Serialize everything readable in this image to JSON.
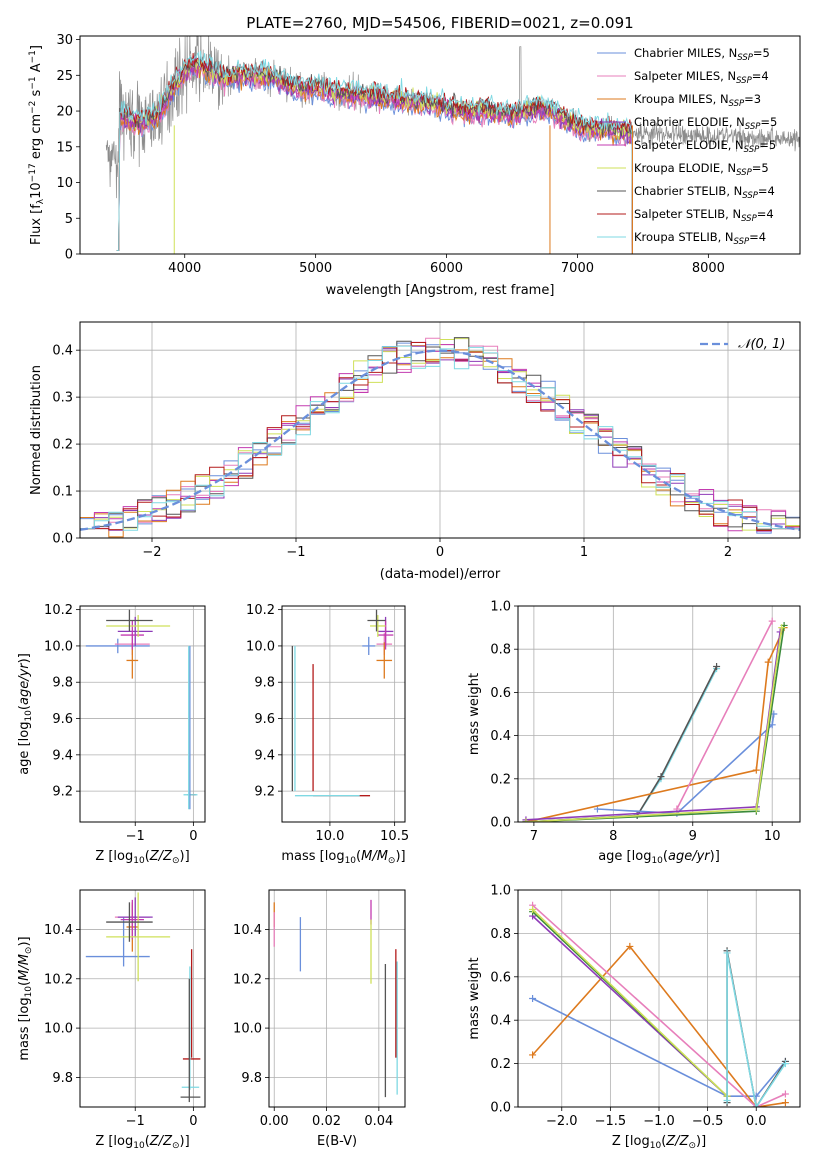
{
  "figure_title": "PLATE=2760, MJD=54506, FIBERID=0021, z=0.091",
  "colors": {
    "Chabrier MILES": "#6a8fdb",
    "Salpeter MILES": "#e77fbb",
    "Kroupa MILES": "#dd7a1e",
    "Chabrier ELODIE": "#8e3bb8",
    "Salpeter ELODIE": "#c33bb0",
    "Kroupa ELODIE": "#cfe05a",
    "Chabrier STELIB": "#555555",
    "Salpeter STELIB": "#b31b1b",
    "Kroupa STELIB": "#7fd9e3",
    "data": "#8c8c8c",
    "gaussian": "#6a8fdb",
    "green": "#3a8a3a"
  },
  "chart_data": [
    {
      "id": "spectrum",
      "type": "line",
      "xlabel": "wavelength [Angstrom, rest frame]",
      "ylabel": "Flux [fλ10⁻¹⁷ erg cm⁻² s⁻¹ A⁻¹]",
      "xlim": [
        3200,
        8700
      ],
      "ylim": [
        0,
        30.5
      ],
      "xticks": [
        4000,
        5000,
        6000,
        7000,
        8000
      ],
      "yticks": [
        0,
        5,
        10,
        15,
        20,
        25,
        30
      ],
      "legend_position": "top-right",
      "legend": [
        {
          "name": "Chabrier MILES, N_SSP=5",
          "prefix": "Chabrier MILES, N",
          "sub": "SSP",
          "suffix": "=5",
          "color": "#6a8fdb"
        },
        {
          "name": "Salpeter MILES, N_SSP=4",
          "prefix": "Salpeter MILES, N",
          "sub": "SSP",
          "suffix": "=4",
          "color": "#e77fbb"
        },
        {
          "name": "Kroupa MILES, N_SSP=3",
          "prefix": "Kroupa MILES, N",
          "sub": "SSP",
          "suffix": "=3",
          "color": "#dd7a1e"
        },
        {
          "name": "Chabrier ELODIE, N_SSP=5",
          "prefix": "Chabrier ELODIE, N",
          "sub": "SSP",
          "suffix": "=5",
          "color": "#8e3bb8"
        },
        {
          "name": "Salpeter ELODIE, N_SSP=5",
          "prefix": "Salpeter ELODIE, N",
          "sub": "SSP",
          "suffix": "=5",
          "color": "#c33bb0"
        },
        {
          "name": "Kroupa ELODIE, N_SSP=5",
          "prefix": "Kroupa ELODIE, N",
          "sub": "SSP",
          "suffix": "=5",
          "color": "#cfe05a"
        },
        {
          "name": "Chabrier STELIB, N_SSP=4",
          "prefix": "Chabrier STELIB, N",
          "sub": "SSP",
          "suffix": "=4",
          "color": "#555555"
        },
        {
          "name": "Salpeter STELIB, N_SSP=4",
          "prefix": "Salpeter STELIB, N",
          "sub": "SSP",
          "suffix": "=4",
          "color": "#b31b1b"
        },
        {
          "name": "Kroupa STELIB, N_SSP=4",
          "prefix": "Kroupa STELIB, N",
          "sub": "SSP",
          "suffix": "=4",
          "color": "#7fd9e3"
        }
      ],
      "continuum": {
        "x": [
          3500,
          3600,
          3700,
          3800,
          3900,
          4000,
          4100,
          4200,
          4300,
          4400,
          4500,
          4600,
          4700,
          4800,
          4900,
          5000,
          5100,
          5200,
          5300,
          5400,
          5500,
          5600,
          5700,
          5800,
          5900,
          6000,
          6100,
          6200,
          6300,
          6400,
          6500,
          6600,
          6700,
          6800,
          6900,
          7000,
          7100,
          7200,
          7300,
          7400
        ],
        "y": [
          19.5,
          18.5,
          18.5,
          19.5,
          23.0,
          25.5,
          26.5,
          25.5,
          24.5,
          25.0,
          25.0,
          25.0,
          24.5,
          23.8,
          23.0,
          23.3,
          22.8,
          22.5,
          22.3,
          22.2,
          22.0,
          21.8,
          21.5,
          21.3,
          21.0,
          20.5,
          20.3,
          20.0,
          20.0,
          19.8,
          19.5,
          20.0,
          20.5,
          20.0,
          19.0,
          18.0,
          17.5,
          17.5,
          17.2,
          17.0
        ]
      },
      "data_extent": [
        3400,
        8700
      ],
      "model_extent": [
        3480,
        7420
      ]
    },
    {
      "id": "residuals",
      "type": "histogram",
      "xlabel": "(data-model)/error",
      "ylabel": "Normed distribution",
      "xlim": [
        -2.5,
        2.5
      ],
      "ylim": [
        0,
        0.46
      ],
      "xticks": [
        -2,
        -1,
        0,
        1,
        2
      ],
      "yticks": [
        0.0,
        0.1,
        0.2,
        0.3,
        0.4
      ],
      "bin_width": 0.1,
      "legend": [
        {
          "name": "𝒩(0, 1)",
          "color": "#6a8fdb",
          "style": "dashed"
        }
      ],
      "legend_position": "top-right",
      "gaussian": {
        "mean": 0,
        "sigma": 1
      }
    },
    {
      "id": "age-vs-Z",
      "type": "errorbar",
      "xlabel": "Z [log10(Z/Z⊙)]",
      "ylabel": "age [log10(age/yr)]",
      "xlim": [
        -1.95,
        0.2
      ],
      "ylim": [
        9.03,
        10.22
      ],
      "xticks": [
        -1,
        0
      ],
      "yticks": [
        9.2,
        9.4,
        9.6,
        9.8,
        10.0,
        10.2
      ],
      "points": [
        {
          "label": "Chabrier MILES",
          "x": -1.3,
          "xerr": 0.55,
          "y": 10.0,
          "yerr": 0.04
        },
        {
          "label": "Salpeter MILES",
          "x": -1.05,
          "xerr": 0.3,
          "y": 10.01,
          "yerr": 0.06
        },
        {
          "label": "Kroupa MILES",
          "x": -1.05,
          "xerr": 0.1,
          "y": 9.92,
          "yerr": 0.1
        },
        {
          "label": "Chabrier ELODIE",
          "x": -1.0,
          "xerr": 0.3,
          "y": 10.08,
          "yerr": 0.08
        },
        {
          "label": "Salpeter ELODIE",
          "x": -1.05,
          "xerr": 0.2,
          "y": 10.06,
          "yerr": 0.08
        },
        {
          "label": "Kroupa ELODIE",
          "x": -0.95,
          "xerr": 0.55,
          "y": 10.11,
          "yerr": 0.06
        },
        {
          "label": "Chabrier STELIB",
          "x": -1.1,
          "xerr": 0.4,
          "y": 10.14,
          "yerr": 0.06
        },
        {
          "label": "Salpeter STELIB",
          "x": -0.03,
          "xerr": 0.07,
          "y": 9.18,
          "yerr": 0.0
        },
        {
          "label": "Kroupa STELIB",
          "x": -0.05,
          "xerr": 0.12,
          "y": 9.18,
          "yerr": 0.0
        },
        {
          "label": "Chabrier MILES",
          "x": -0.06,
          "xerr": 0.0,
          "y": 9.55,
          "yerr": 0.45
        },
        {
          "label": "Kroupa STELIB",
          "x": -0.08,
          "xerr": 0.0,
          "y": 9.55,
          "yerr": 0.45
        }
      ]
    },
    {
      "id": "age-vs-mass",
      "type": "errorbar",
      "xlabel": "mass [log10(M/M⊙)]",
      "ylabel": "",
      "xlim": [
        9.63,
        10.58
      ],
      "ylim": [
        9.03,
        10.22
      ],
      "xticks": [
        10.0,
        10.5
      ],
      "yticks": [
        9.2,
        9.4,
        9.6,
        9.8,
        10.0,
        10.2
      ],
      "points": [
        {
          "label": "Chabrier MILES",
          "x": 10.3,
          "xerr": 0.05,
          "y": 10.0,
          "yerr": 0.05
        },
        {
          "label": "Salpeter MILES",
          "x": 10.42,
          "xerr": 0.06,
          "y": 10.01,
          "yerr": 0.06
        },
        {
          "label": "Kroupa MILES",
          "x": 10.42,
          "xerr": 0.06,
          "y": 9.92,
          "yerr": 0.1
        },
        {
          "label": "Chabrier ELODIE",
          "x": 10.43,
          "xerr": 0.06,
          "y": 10.08,
          "yerr": 0.08
        },
        {
          "label": "Salpeter ELODIE",
          "x": 10.43,
          "xerr": 0.06,
          "y": 10.06,
          "yerr": 0.08
        },
        {
          "label": "Kroupa ELODIE",
          "x": 10.37,
          "xerr": 0.06,
          "y": 10.11,
          "yerr": 0.06
        },
        {
          "label": "Chabrier STELIB",
          "x": 10.36,
          "xerr": 0.07,
          "y": 10.14,
          "yerr": 0.06
        },
        {
          "label": "Salpeter STELIB",
          "x": 9.87,
          "xerr": 0.0,
          "y": 9.55,
          "yerr": 0.35
        },
        {
          "label": "Salpeter STELIB",
          "x": 10.09,
          "xerr": 0.22,
          "y": 9.175,
          "yerr": 0.0
        },
        {
          "label": "Kroupa STELIB",
          "x": 9.73,
          "xerr": 0.0,
          "y": 9.6,
          "yerr": 0.4
        },
        {
          "label": "Kroupa STELIB",
          "x": 9.98,
          "xerr": 0.25,
          "y": 9.175,
          "yerr": 0.0
        },
        {
          "label": "Chabrier STELIB",
          "x": 9.71,
          "xerr": 0.0,
          "y": 9.6,
          "yerr": 0.4
        }
      ]
    },
    {
      "id": "weight-vs-age",
      "type": "line",
      "xlabel": "age [log10(age/yr)]",
      "ylabel": "mass weight",
      "xlim": [
        6.8,
        10.35
      ],
      "ylim": [
        0,
        1.0
      ],
      "xticks": [
        7,
        8,
        9,
        10
      ],
      "yticks": [
        0.0,
        0.2,
        0.4,
        0.6,
        0.8,
        1.0
      ],
      "series": [
        {
          "label": "Kroupa STELIB",
          "x": [
            6.9,
            8.3,
            8.6,
            9.3
          ],
          "y": [
            0.0,
            0.03,
            0.2,
            0.71
          ]
        },
        {
          "label": "Chabrier STELIB",
          "x": [
            6.9,
            8.3,
            8.6,
            9.3
          ],
          "y": [
            0.0,
            0.03,
            0.21,
            0.72
          ]
        },
        {
          "label": "Chabrier MILES",
          "x": [
            7.8,
            8.8,
            10.0,
            10.02
          ],
          "y": [
            0.06,
            0.04,
            0.45,
            0.5
          ]
        },
        {
          "label": "Kroupa MILES",
          "x": [
            6.9,
            9.8,
            9.95,
            10.15
          ],
          "y": [
            0.0,
            0.24,
            0.74,
            0.9
          ]
        },
        {
          "label": "Salpeter MILES",
          "x": [
            8.8,
            10.0
          ],
          "y": [
            0.06,
            0.93
          ]
        },
        {
          "label": "Chabrier ELODIE",
          "x": [
            6.9,
            9.8,
            10.1
          ],
          "y": [
            0.01,
            0.07,
            0.88
          ]
        },
        {
          "label": "green",
          "x": [
            6.9,
            9.8,
            10.15
          ],
          "y": [
            0.0,
            0.05,
            0.91
          ]
        },
        {
          "label": "Kroupa ELODIE",
          "x": [
            6.9,
            9.8,
            10.12
          ],
          "y": [
            0.0,
            0.06,
            0.9
          ]
        }
      ]
    },
    {
      "id": "mass-vs-Z",
      "type": "errorbar",
      "xlabel": "Z [log10(Z/Z⊙)]",
      "ylabel": "mass [log10(M/M⊙)]",
      "xlim": [
        -1.95,
        0.2
      ],
      "ylim": [
        9.68,
        10.56
      ],
      "xticks": [
        -1,
        0
      ],
      "yticks": [
        9.8,
        10.0,
        10.2,
        10.4
      ],
      "points": [
        {
          "label": "Chabrier MILES",
          "x": -1.3,
          "xerr": 0.55,
          "y": 10.29,
          "yerr": 0.0
        },
        {
          "label": "Chabrier MILES",
          "x": -1.2,
          "xerr": 0.0,
          "y": 10.35,
          "yerr": 0.1
        },
        {
          "label": "Salpeter MILES",
          "x": -1.05,
          "xerr": 0.3,
          "y": 10.45,
          "yerr": 0.05
        },
        {
          "label": "Kroupa MILES",
          "x": -1.05,
          "xerr": 0.1,
          "y": 10.41,
          "yerr": 0.1
        },
        {
          "label": "Chabrier ELODIE",
          "x": -1.0,
          "xerr": 0.3,
          "y": 10.45,
          "yerr": 0.08
        },
        {
          "label": "Salpeter ELODIE",
          "x": -1.05,
          "xerr": 0.2,
          "y": 10.44,
          "yerr": 0.08
        },
        {
          "label": "Kroupa ELODIE",
          "x": -0.95,
          "xerr": 0.55,
          "y": 10.37,
          "yerr": 0.18
        },
        {
          "label": "Chabrier STELIB",
          "x": -1.1,
          "xerr": 0.4,
          "y": 10.43,
          "yerr": 0.08
        },
        {
          "label": "Salpeter STELIB",
          "x": -0.03,
          "xerr": 0.15,
          "y": 9.875,
          "yerr": 0.0
        },
        {
          "label": "Salpeter STELIB",
          "x": -0.03,
          "xerr": 0.0,
          "y": 10.1,
          "yerr": 0.22
        },
        {
          "label": "Kroupa STELIB",
          "x": -0.05,
          "xerr": 0.15,
          "y": 9.76,
          "yerr": 0.0
        },
        {
          "label": "Kroupa STELIB",
          "x": -0.06,
          "xerr": 0.0,
          "y": 10.0,
          "yerr": 0.25
        },
        {
          "label": "Chabrier STELIB",
          "x": -0.05,
          "xerr": 0.17,
          "y": 9.72,
          "yerr": 0.0
        },
        {
          "label": "Chabrier STELIB",
          "x": -0.07,
          "xerr": 0.0,
          "y": 9.95,
          "yerr": 0.25
        }
      ]
    },
    {
      "id": "mass-vs-EBV",
      "type": "errorbar",
      "xlabel": "E(B-V)",
      "ylabel": "",
      "xlim": [
        -0.002,
        0.05
      ],
      "ylim": [
        9.68,
        10.56
      ],
      "xticks": [
        0.0,
        0.02,
        0.04
      ],
      "yticks": [
        9.8,
        10.0,
        10.2,
        10.4
      ],
      "points": [
        {
          "label": "Kroupa MILES",
          "x": 0.0,
          "xerr": 0.0,
          "y": 10.46,
          "yerr": 0.05
        },
        {
          "label": "Salpeter MILES",
          "x": 0.0,
          "xerr": 0.0,
          "y": 10.4,
          "yerr": 0.07
        },
        {
          "label": "Chabrier MILES",
          "x": 0.01,
          "xerr": 0.0,
          "y": 10.34,
          "yerr": 0.11
        },
        {
          "label": "Salpeter ELODIE",
          "x": 0.037,
          "xerr": 0.0,
          "y": 10.47,
          "yerr": 0.05
        },
        {
          "label": "Kroupa ELODIE",
          "x": 0.037,
          "xerr": 0.0,
          "y": 10.31,
          "yerr": 0.13
        },
        {
          "label": "Chabrier STELIB",
          "x": 0.0425,
          "xerr": 0.0,
          "y": 9.99,
          "yerr": 0.27
        },
        {
          "label": "Salpeter STELIB",
          "x": 0.0465,
          "xerr": 0.0,
          "y": 10.1,
          "yerr": 0.22
        },
        {
          "label": "Kroupa STELIB",
          "x": 0.047,
          "xerr": 0.0,
          "y": 10.0,
          "yerr": 0.27
        }
      ]
    },
    {
      "id": "weight-vs-Z",
      "type": "line",
      "xlabel": "Z [log10(Z/Z⊙)]",
      "ylabel": "mass weight",
      "xlim": [
        -2.45,
        0.45
      ],
      "ylim": [
        0,
        1.0
      ],
      "xticks": [
        -2.0,
        -1.5,
        -1.0,
        -0.5,
        0.0
      ],
      "yticks": [
        0.0,
        0.2,
        0.4,
        0.6,
        0.8,
        1.0
      ],
      "series": [
        {
          "label": "Chabrier MILES",
          "x": [
            -2.3,
            -0.3,
            0.0,
            0.3
          ],
          "y": [
            0.5,
            0.05,
            0.05,
            0.21
          ]
        },
        {
          "label": "Kroupa MILES",
          "x": [
            -2.3,
            -1.3,
            0.0,
            0.3
          ],
          "y": [
            0.24,
            0.74,
            0.0,
            0.02
          ]
        },
        {
          "label": "Salpeter MILES",
          "x": [
            -2.3,
            0.0,
            0.3
          ],
          "y": [
            0.93,
            0.0,
            0.06
          ]
        },
        {
          "label": "Chabrier ELODIE",
          "x": [
            -2.3,
            -0.3
          ],
          "y": [
            0.88,
            0.05
          ]
        },
        {
          "label": "green",
          "x": [
            -2.3,
            -0.3
          ],
          "y": [
            0.9,
            0.05
          ]
        },
        {
          "label": "Kroupa ELODIE",
          "x": [
            -2.3,
            -0.3
          ],
          "y": [
            0.91,
            0.05
          ]
        },
        {
          "label": "Chabrier STELIB",
          "x": [
            -0.3,
            -0.3,
            0.0,
            0.3
          ],
          "y": [
            0.02,
            0.72,
            0.0,
            0.21
          ]
        },
        {
          "label": "Kroupa STELIB",
          "x": [
            -0.3,
            -0.3,
            0.0,
            0.3
          ],
          "y": [
            0.03,
            0.71,
            0.0,
            0.2
          ]
        }
      ]
    }
  ]
}
